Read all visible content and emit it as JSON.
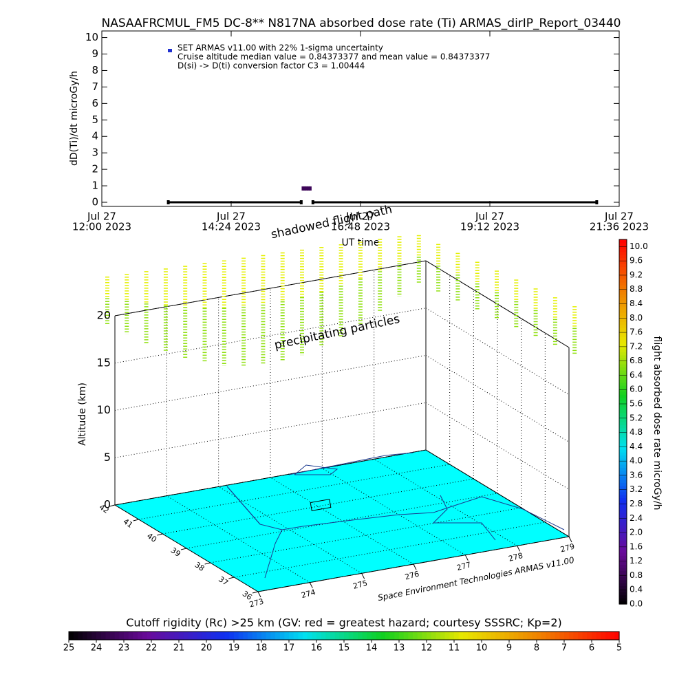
{
  "chart_data": [
    {
      "type": "line",
      "title": "NASAAFRCMUL_FM5 DC-8** N817NA absorbed dose rate (Ti) ARMAS_dirIP_Report_03440",
      "y_label": "dD(Ti)/dt microGy/h",
      "x_label": "UT time",
      "annotations": [
        "SET ARMAS v11.00 with 22% 1-sigma uncertainty",
        "Cruise altitude median value = 0.84373377 and mean value = 0.84373377",
        "D(si) -> D(ti) conversion factor C3 = 1.00444"
      ],
      "x": [
        "2023-07-27T13:14",
        "2023-07-27T15:42",
        "2023-07-27T15:43",
        "2023-07-27T15:44",
        "2023-07-27T15:46",
        "2023-07-27T15:48",
        "2023-07-27T15:50",
        "2023-07-27T15:52",
        "2023-07-27T15:53",
        "2023-07-27T15:55",
        "2023-07-27T21:11"
      ],
      "values": [
        0,
        0,
        null,
        0.84,
        0.84,
        0.84,
        0.84,
        0.84,
        null,
        0,
        0
      ],
      "color": "#000000",
      "xlim": [
        "2023-07-27T12:00",
        "2023-07-27T21:36"
      ],
      "xticks": [
        {
          "value": "2023-07-27T12:00",
          "label": [
            "Jul 27",
            "12:00 2023"
          ]
        },
        {
          "value": "2023-07-27T14:24",
          "label": [
            "Jul 27",
            "14:24 2023"
          ]
        },
        {
          "value": "2023-07-27T16:48",
          "label": [
            "Jul 27",
            "16:48 2023"
          ]
        },
        {
          "value": "2023-07-27T19:12",
          "label": [
            "Jul 27",
            "19:12 2023"
          ]
        },
        {
          "value": "2023-07-27T21:36",
          "label": [
            "Jul 27",
            "21:36 2023"
          ]
        }
      ],
      "ylim": [
        -0.25,
        10.4
      ],
      "yticks": [
        0,
        1,
        2,
        3,
        4,
        5,
        6,
        7,
        8,
        9,
        10
      ]
    },
    {
      "type": "scatter3d",
      "z_label": "Altitude (km)",
      "annotations": [
        "shadowed flight path",
        "precipitating particles",
        "Space Environment Technologies ARMAS v11.00"
      ],
      "xlim": [
        273,
        279
      ],
      "xticks": [
        273,
        274,
        275,
        276,
        277,
        278,
        279
      ],
      "ylim": [
        36,
        42
      ],
      "yticks": [
        42,
        41,
        40,
        39,
        38,
        37,
        36
      ],
      "zlim": [
        0,
        20
      ],
      "zticks": [
        0,
        5,
        10,
        15,
        20
      ],
      "floor_color": "#00ffff",
      "grid": true
    },
    {
      "type": "colorbar",
      "label": "flight absorbed dose rate microGy/h",
      "ylim": [
        0,
        10.2
      ],
      "yticks": [
        {
          "value": 0,
          "label": "0.0"
        },
        {
          "value": 0.4,
          "label": "0.4"
        },
        {
          "value": 0.8,
          "label": "0.8"
        },
        {
          "value": 1.2,
          "label": "1.2"
        },
        {
          "value": 1.6,
          "label": "1.6"
        },
        {
          "value": 2,
          "label": "2.0"
        },
        {
          "value": 2.4,
          "label": "2.4"
        },
        {
          "value": 2.8,
          "label": "2.8"
        },
        {
          "value": 3.2,
          "label": "3.2"
        },
        {
          "value": 3.6,
          "label": "3.6"
        },
        {
          "value": 4,
          "label": "4.0"
        },
        {
          "value": 4.4,
          "label": "4.4"
        },
        {
          "value": 4.8,
          "label": "4.8"
        },
        {
          "value": 5.2,
          "label": "5.2"
        },
        {
          "value": 5.6,
          "label": "5.6"
        },
        {
          "value": 6,
          "label": "6.0"
        },
        {
          "value": 6.4,
          "label": "6.4"
        },
        {
          "value": 6.8,
          "label": "6.8"
        },
        {
          "value": 7.2,
          "label": "7.2"
        },
        {
          "value": 7.6,
          "label": "7.6"
        },
        {
          "value": 8,
          "label": "8.0"
        },
        {
          "value": 8.4,
          "label": "8.4"
        },
        {
          "value": 8.8,
          "label": "8.8"
        },
        {
          "value": 9.2,
          "label": "9.2"
        },
        {
          "value": 9.6,
          "label": "9.6"
        },
        {
          "value": 10,
          "label": "10.0"
        }
      ],
      "colormap": [
        "#000000",
        "#6a0a9a",
        "#1030f0",
        "#00e0f0",
        "#10d020",
        "#e8e800",
        "#f08000",
        "#ff0000"
      ]
    },
    {
      "type": "colorbar",
      "title": "Cutoff rigidity (Rc) >25 km (GV: red = greatest hazard; courtesy SSSRC; Kp=2)",
      "xlim": [
        25,
        5
      ],
      "xticks": [
        25,
        24,
        23,
        22,
        21,
        20,
        19,
        18,
        17,
        16,
        15,
        14,
        13,
        12,
        11,
        10,
        9,
        8,
        7,
        6,
        5
      ],
      "colormap": [
        "#000000",
        "#6a0a9a",
        "#1030f0",
        "#00e0f0",
        "#10d020",
        "#e8e800",
        "#f08000",
        "#ff0000"
      ]
    }
  ]
}
